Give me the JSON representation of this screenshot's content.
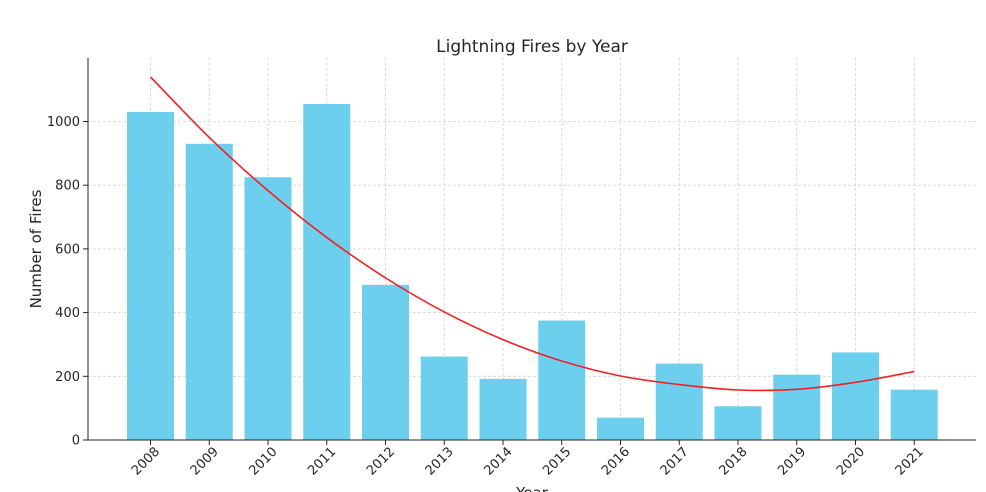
{
  "chart_data": {
    "type": "bar",
    "title": "Lightning Fires by Year",
    "xlabel": "Year",
    "ylabel": "Number of Fires",
    "categories": [
      "2008",
      "2009",
      "2010",
      "2011",
      "2012",
      "2013",
      "2014",
      "2015",
      "2016",
      "2017",
      "2018",
      "2019",
      "2020",
      "2021"
    ],
    "values": [
      1030,
      930,
      825,
      1055,
      487,
      262,
      192,
      375,
      70,
      240,
      106,
      205,
      275,
      158
    ],
    "trend_line": {
      "type": "line",
      "values": [
        1140,
        950,
        783,
        636,
        509,
        402,
        315,
        248,
        201,
        174,
        157,
        159,
        181,
        215
      ]
    },
    "ylim": [
      0,
      1200
    ],
    "yticks": [
      0,
      200,
      400,
      600,
      800,
      1000
    ],
    "grid": true,
    "colors": {
      "bar": "#6DCFEE",
      "trend": "#F22020",
      "axis": "#262626",
      "grid": "#D3D3D3"
    }
  }
}
